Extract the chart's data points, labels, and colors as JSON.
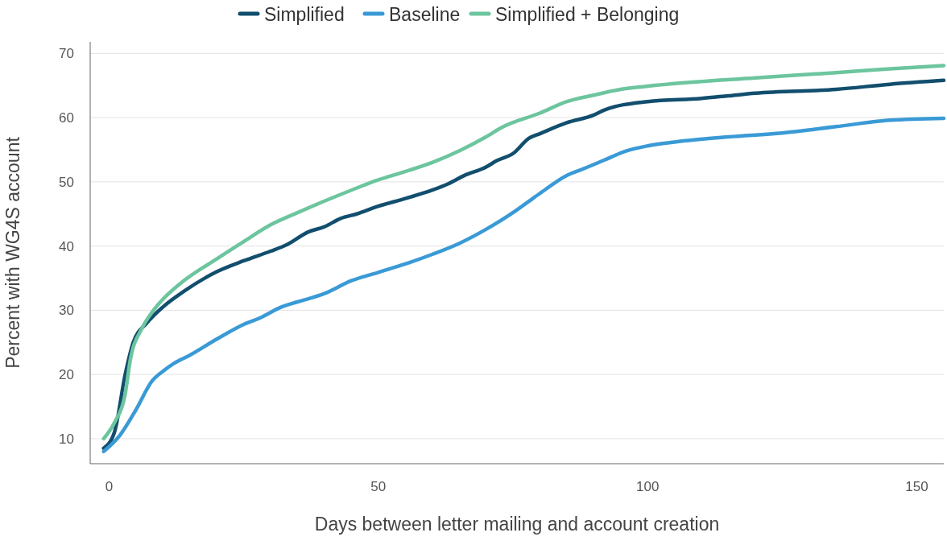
{
  "chart_data": {
    "type": "line",
    "xlabel": "Days between letter mailing and account creation",
    "ylabel": "Percent with WG4S account",
    "xlim": [
      -3.5,
      155
    ],
    "ylim": [
      6.1,
      71.8
    ],
    "xticks": [
      0,
      50,
      100,
      150
    ],
    "yticks": [
      10,
      20,
      30,
      40,
      50,
      60,
      70
    ],
    "grid": "y",
    "legend": "top",
    "line_style": "solid",
    "series": [
      {
        "name": "Simplified",
        "color": "#124e6e",
        "x": [
          -1,
          1,
          3,
          4.5,
          7,
          10,
          14,
          20,
          25,
          30,
          33,
          37,
          40,
          43,
          46,
          50,
          55,
          60,
          63,
          66,
          70,
          72,
          75,
          78,
          80,
          85,
          90,
          92,
          100,
          110,
          115,
          120,
          135,
          145,
          155
        ],
        "values": [
          8.5,
          11,
          20,
          25,
          28,
          30.5,
          33,
          36,
          37.7,
          39.2,
          40.2,
          42.2,
          43,
          44.3,
          45,
          46.2,
          47.4,
          48.7,
          49.7,
          51,
          52.3,
          53.3,
          54.4,
          56.8,
          57.5,
          59.2,
          60.4,
          61.2,
          62.5,
          63,
          63.4,
          63.8,
          64.4,
          65.2,
          65.8
        ]
      },
      {
        "name": "Baseline",
        "color": "#3a9ad6",
        "x": [
          -1,
          2,
          5,
          8,
          10,
          12,
          15,
          20,
          25,
          28,
          32,
          35,
          40,
          45,
          50,
          55,
          60,
          65,
          70,
          75,
          78,
          80,
          85,
          88,
          92,
          96,
          100,
          105,
          115,
          125,
          135,
          145,
          155
        ],
        "values": [
          8,
          10.5,
          14.5,
          19,
          20.5,
          21.7,
          23,
          25.5,
          27.8,
          28.8,
          30.5,
          31.3,
          32.6,
          34.6,
          35.9,
          37.2,
          38.7,
          40.4,
          42.6,
          45.2,
          47,
          48.2,
          51,
          52,
          53.4,
          54.8,
          55.6,
          56.2,
          57,
          57.6,
          58.6,
          59.6,
          59.9
        ]
      },
      {
        "name": "Simplified + Belonging",
        "color": "#6cc59e",
        "x": [
          -1,
          1,
          3,
          4,
          6,
          8,
          10,
          13,
          20,
          25,
          30,
          35,
          40,
          45,
          50,
          55,
          60,
          65,
          70,
          73,
          80,
          85,
          90,
          95,
          100,
          120,
          135,
          145,
          155
        ],
        "values": [
          10,
          12.5,
          17,
          22.5,
          27,
          29.7,
          31.7,
          34,
          38,
          40.7,
          43.3,
          45.2,
          47,
          48.7,
          50.3,
          51.6,
          53,
          54.8,
          57,
          58.5,
          60.7,
          62.5,
          63.5,
          64.4,
          64.9,
          66.2,
          67,
          67.6,
          68.1
        ]
      }
    ]
  }
}
